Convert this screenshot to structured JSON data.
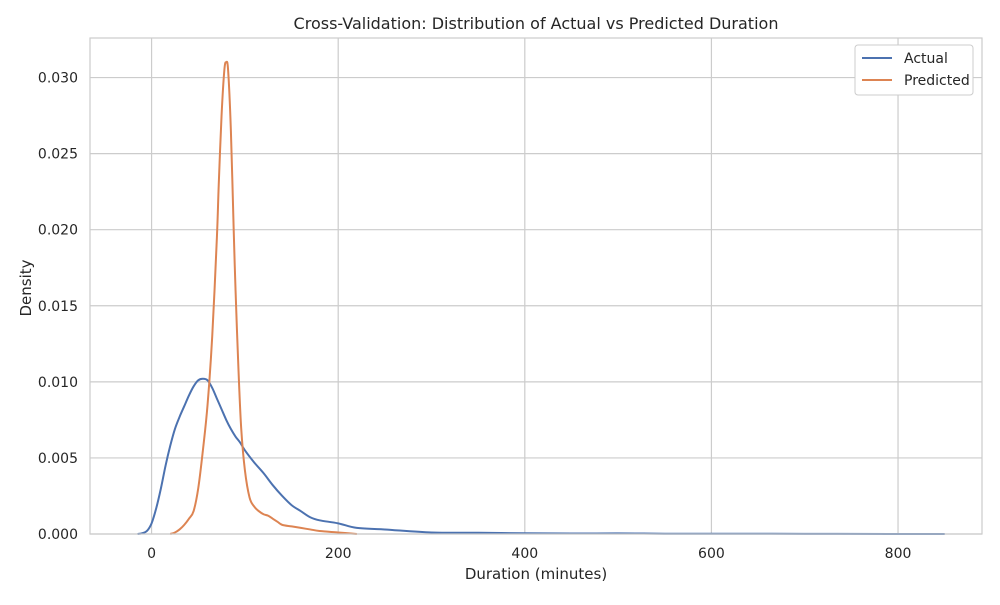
{
  "chart_data": {
    "type": "line",
    "title": "Cross-Validation: Distribution of Actual vs Predicted Duration",
    "xlabel": "Duration (minutes)",
    "ylabel": "Density",
    "xlim": [
      -66,
      890
    ],
    "ylim": [
      0,
      0.0326
    ],
    "xticks": [
      0,
      200,
      400,
      600,
      800
    ],
    "xtick_labels": [
      "0",
      "200",
      "400",
      "600",
      "800"
    ],
    "yticks": [
      0,
      0.005,
      0.01,
      0.015,
      0.02,
      0.025,
      0.03
    ],
    "ytick_labels": [
      "0.000",
      "0.005",
      "0.010",
      "0.015",
      "0.020",
      "0.025",
      "0.030"
    ],
    "grid": true,
    "legend_position": "top-right",
    "colors": {
      "Actual": "#4c72b0",
      "Predicted": "#dd8452",
      "grid": "#cccccc",
      "frame": "#cccccc"
    },
    "series": [
      {
        "name": "Actual",
        "x": [
          -15,
          -10,
          -5,
          0,
          5,
          10,
          15,
          20,
          25,
          30,
          35,
          40,
          45,
          50,
          55,
          60,
          65,
          70,
          75,
          80,
          85,
          90,
          95,
          100,
          110,
          120,
          130,
          140,
          150,
          160,
          170,
          180,
          200,
          220,
          250,
          300,
          350,
          400,
          450,
          500,
          550,
          600,
          700,
          800,
          850
        ],
        "y": [
          0,
          5e-05,
          0.0002,
          0.0007,
          0.0017,
          0.003,
          0.0045,
          0.0058,
          0.0069,
          0.0077,
          0.0084,
          0.0091,
          0.0097,
          0.0101,
          0.0102,
          0.0101,
          0.0096,
          0.0089,
          0.0082,
          0.0075,
          0.0069,
          0.0064,
          0.006,
          0.0055,
          0.0047,
          0.004,
          0.0032,
          0.0025,
          0.0019,
          0.0015,
          0.0011,
          0.0009,
          0.0007,
          0.0004,
          0.0003,
          0.0001,
          8e-05,
          5e-05,
          3e-05,
          4e-05,
          2e-05,
          2e-05,
          1e-05,
          0,
          0
        ]
      },
      {
        "name": "Predicted",
        "x": [
          20,
          25,
          30,
          35,
          40,
          45,
          50,
          55,
          60,
          65,
          70,
          72,
          75,
          78,
          80,
          82,
          85,
          88,
          90,
          93,
          96,
          100,
          105,
          110,
          115,
          120,
          125,
          130,
          135,
          140,
          150,
          160,
          170,
          180,
          200,
          220
        ],
        "y": [
          0,
          0.0001,
          0.0003,
          0.0006,
          0.001,
          0.0015,
          0.003,
          0.0055,
          0.0085,
          0.013,
          0.0195,
          0.023,
          0.0275,
          0.0305,
          0.031,
          0.0305,
          0.0265,
          0.02,
          0.016,
          0.011,
          0.007,
          0.0042,
          0.0024,
          0.0018,
          0.0015,
          0.0013,
          0.0012,
          0.001,
          0.0008,
          0.0006,
          0.0005,
          0.0004,
          0.0003,
          0.0002,
          0.0001,
          0
        ]
      }
    ]
  }
}
